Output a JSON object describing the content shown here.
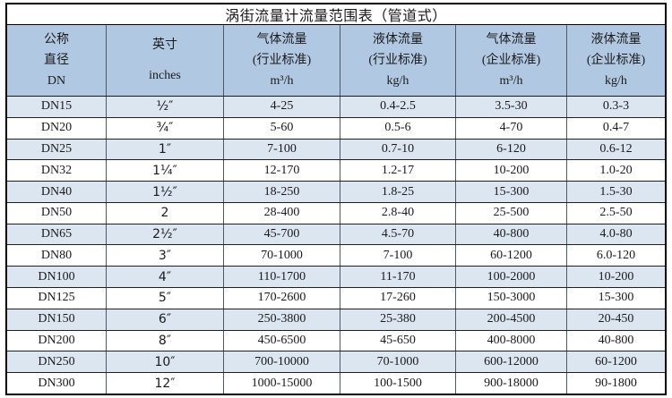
{
  "title": "涡街流量计流量范围表（管道式）",
  "table": {
    "headers": [
      {
        "name": "nominal-diameter",
        "lines": [
          "公称",
          "直径",
          "DN"
        ]
      },
      {
        "name": "inches",
        "lines": [
          "英寸",
          "inches"
        ]
      },
      {
        "name": "gas-flow-industry-standard",
        "lines": [
          "气体流量",
          "(行业标准)",
          "m³/h"
        ]
      },
      {
        "name": "liquid-flow-industry-standard",
        "lines": [
          "液体流量",
          "(行业标准)",
          "kg/h"
        ]
      },
      {
        "name": "gas-flow-enterprise-standard",
        "lines": [
          "气体流量",
          "(企业标准)",
          "m³/h"
        ]
      },
      {
        "name": "liquid-flow-enterprise-standard",
        "lines": [
          "液体流量",
          "(企业标准)",
          "kg/h"
        ]
      }
    ],
    "rows": [
      [
        "DN15",
        "½″",
        "4-25",
        "0.4-2.5",
        "3.5-30",
        "0.3-3"
      ],
      [
        "DN20",
        "¾″",
        "5-60",
        "0.5-6",
        "4-70",
        "0.4-7"
      ],
      [
        "DN25",
        "1″",
        "7-100",
        "0.7-10",
        "6-120",
        "0.6-12"
      ],
      [
        "DN32",
        "1¼″",
        "12-170",
        "1.2-17",
        "10-200",
        "1.0-20"
      ],
      [
        "DN40",
        "1½″",
        "18-250",
        "1.8-25",
        "15-300",
        "1.5-30"
      ],
      [
        "DN50",
        "2",
        "28-400",
        "2.8-40",
        "25-500",
        "2.5-50"
      ],
      [
        "DN65",
        "2½″",
        "45-700",
        "4.5-70",
        "40-800",
        "4.0-80"
      ],
      [
        "DN80",
        "3″",
        "70-1000",
        "7-100",
        "60-1200",
        "6.0-120"
      ],
      [
        "DN100",
        "4″",
        "110-1700",
        "11-170",
        "100-2000",
        "10-200"
      ],
      [
        "DN125",
        "5″",
        "170-2600",
        "17-260",
        "150-3000",
        "15-300"
      ],
      [
        "DN150",
        "6″",
        "250-3800",
        "25-380",
        "200-4500",
        "20-450"
      ],
      [
        "DN200",
        "8″",
        "450-6500",
        "45-650",
        "400-8000",
        "40-800"
      ],
      [
        "DN250",
        "10″",
        "700-10000",
        "70-1000",
        "600-12000",
        "60-1200"
      ],
      [
        "DN300",
        "12″",
        "1000-15000",
        "100-1500",
        "900-18000",
        "90-1800"
      ]
    ]
  },
  "colors": {
    "header_bg": "#b1c8e3",
    "row_alt_bg": "#dce6f1",
    "row_bg": "#ffffff",
    "border_outer": "#000000",
    "border_inner": "#4e5a66",
    "text": "#1a1a1a"
  }
}
